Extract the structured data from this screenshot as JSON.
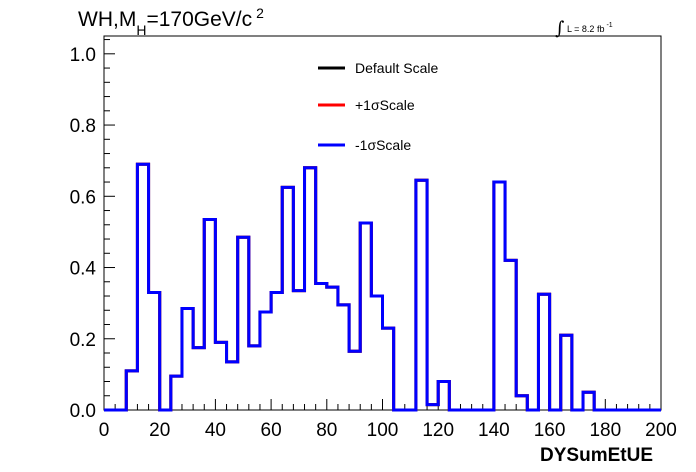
{
  "chart_data": {
    "type": "line",
    "title": {
      "main": "WH,M",
      "subscript": "H",
      "rest": "=170GeV/c",
      "superscript": "2"
    },
    "luminosity": {
      "symbol": "∫",
      "text": "L = 8.2 fb",
      "superscript": "-1"
    },
    "xlabel": "DYSumEtUE",
    "ylabel": "",
    "xlim": [
      0,
      200
    ],
    "ylim": [
      0,
      1.05
    ],
    "xticks": [
      0,
      20,
      40,
      60,
      80,
      100,
      120,
      140,
      160,
      180,
      200
    ],
    "yticks": [
      0.0,
      0.2,
      0.4,
      0.6,
      0.8,
      1.0
    ],
    "xtick_labels": [
      "0",
      "20",
      "40",
      "60",
      "80",
      "100",
      "120",
      "140",
      "160",
      "180",
      "200"
    ],
    "ytick_labels": [
      "0.0",
      "0.2",
      "0.4",
      "0.6",
      "0.8",
      "1.0"
    ],
    "grid": false,
    "legend_position": "top-center",
    "bin_edges": [
      0,
      4,
      8,
      12,
      16,
      20,
      24,
      28,
      32,
      36,
      40,
      44,
      48,
      52,
      56,
      60,
      64,
      68,
      72,
      76,
      80,
      84,
      88,
      92,
      96,
      100,
      104,
      108,
      112,
      116,
      120,
      124,
      128,
      132,
      136,
      140,
      144,
      148,
      152,
      156,
      160,
      164,
      168,
      172,
      176,
      180,
      184,
      188,
      192,
      196,
      200
    ],
    "series": [
      {
        "name": "Default Scale",
        "color": "#000000",
        "values": [
          0,
          0,
          0.11,
          0.69,
          0.33,
          0,
          0.095,
          0.285,
          0.175,
          0.535,
          0.19,
          0.135,
          0.485,
          0.18,
          0.275,
          0.33,
          0.625,
          0.335,
          0.68,
          0.355,
          0.345,
          0.295,
          0.165,
          0.525,
          0.32,
          0.23,
          0,
          0,
          0.645,
          0.015,
          0.08,
          0,
          0,
          0,
          0,
          0.64,
          0.42,
          0.04,
          0,
          0.325,
          0,
          0.21,
          0,
          0.05,
          0,
          0,
          0,
          0,
          0,
          0
        ]
      },
      {
        "name": "+1σScale",
        "color": "#ff0000",
        "values": [
          0,
          0,
          0.11,
          0.69,
          0.33,
          0,
          0.095,
          0.285,
          0.175,
          0.535,
          0.19,
          0.135,
          0.485,
          0.18,
          0.275,
          0.33,
          0.625,
          0.335,
          0.68,
          0.355,
          0.345,
          0.295,
          0.165,
          0.525,
          0.32,
          0.23,
          0,
          0,
          0.645,
          0.015,
          0.08,
          0,
          0,
          0,
          0,
          0.64,
          0.42,
          0.04,
          0,
          0.325,
          0,
          0.21,
          0,
          0.05,
          0,
          0,
          0,
          0,
          0,
          0
        ]
      },
      {
        "name": "-1σScale",
        "color": "#0000ff",
        "values": [
          0,
          0,
          0.11,
          0.69,
          0.33,
          0,
          0.095,
          0.285,
          0.175,
          0.535,
          0.19,
          0.135,
          0.485,
          0.18,
          0.275,
          0.33,
          0.625,
          0.335,
          0.68,
          0.355,
          0.345,
          0.295,
          0.165,
          0.525,
          0.32,
          0.23,
          0,
          0,
          0.645,
          0.015,
          0.08,
          0,
          0,
          0,
          0,
          0.64,
          0.42,
          0.04,
          0,
          0.325,
          0,
          0.21,
          0,
          0.05,
          0,
          0,
          0,
          0,
          0,
          0
        ]
      }
    ]
  }
}
